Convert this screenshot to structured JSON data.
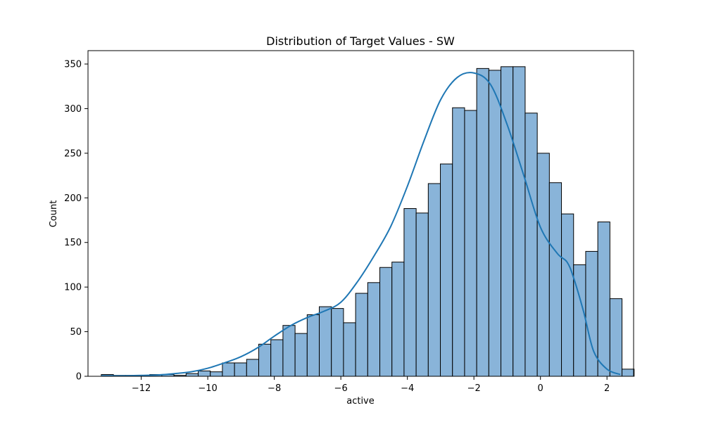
{
  "chart_data": {
    "type": "bar",
    "title": "Distribution of Target Values - SW",
    "xlabel": "active",
    "ylabel": "Count",
    "xlim": [
      -13.6,
      2.8
    ],
    "ylim": [
      0,
      365
    ],
    "xticks": [
      -12,
      -10,
      -8,
      -6,
      -4,
      -2,
      0,
      2
    ],
    "xtick_labels": [
      "−12",
      "−10",
      "−8",
      "−6",
      "−4",
      "−2",
      "0",
      "2"
    ],
    "yticks": [
      0,
      50,
      100,
      150,
      200,
      250,
      300,
      350
    ],
    "ytick_labels": [
      "0",
      "50",
      "100",
      "150",
      "200",
      "250",
      "300",
      "350"
    ],
    "grid": false,
    "bin_start": -13.2,
    "bin_width": 0.364,
    "counts": [
      2,
      1,
      1,
      1,
      2,
      2,
      1,
      3,
      6,
      5,
      15,
      15,
      19,
      36,
      41,
      57,
      48,
      69,
      78,
      76,
      60,
      93,
      105,
      122,
      128,
      188,
      183,
      216,
      238,
      301,
      298,
      345,
      343,
      347,
      347,
      295,
      250,
      217,
      182,
      125,
      140,
      173,
      87,
      8
    ],
    "kde": {
      "x": [
        -13.2,
        -12.5,
        -12.0,
        -11.5,
        -11.0,
        -10.5,
        -10.0,
        -9.5,
        -9.0,
        -8.5,
        -8.0,
        -7.5,
        -7.0,
        -6.5,
        -6.0,
        -5.5,
        -5.0,
        -4.5,
        -4.0,
        -3.5,
        -3.0,
        -2.5,
        -2.0,
        -1.5,
        -1.0,
        -0.5,
        0.0,
        0.5,
        0.8,
        1.0,
        1.3,
        1.6,
        2.0,
        2.4
      ],
      "y": [
        0.5,
        0.6,
        1,
        1.5,
        3,
        5,
        9,
        15,
        22,
        32,
        45,
        57,
        66,
        73,
        83,
        106,
        135,
        168,
        213,
        264,
        310,
        335,
        340,
        327,
        282,
        225,
        167,
        138,
        128,
        110,
        72,
        28,
        8,
        2
      ]
    },
    "colors": {
      "bar_fill": "#89b4d9",
      "bar_edge": "#000000",
      "kde_line": "#1f77b4"
    }
  }
}
